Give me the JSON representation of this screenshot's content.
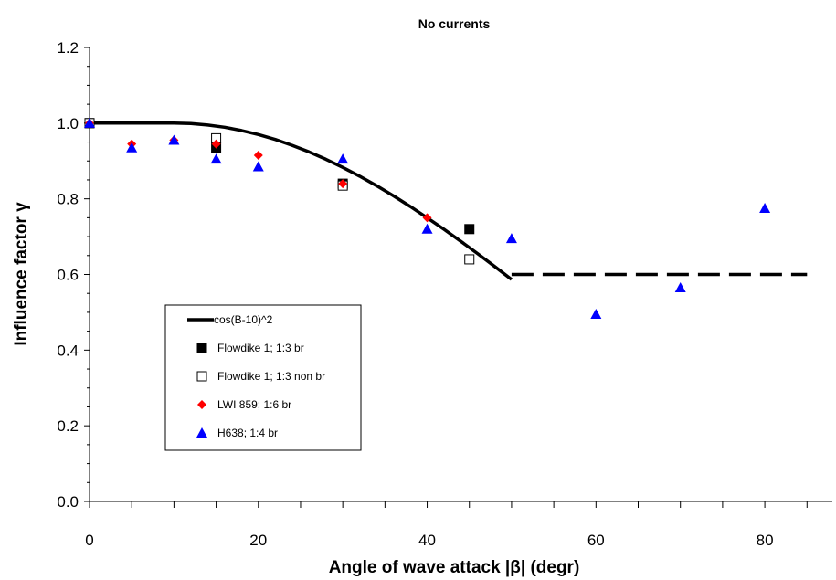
{
  "chart_data": {
    "type": "scatter",
    "title": "No currents",
    "xlabel": "Angle of wave attack |β| (degr)",
    "ylabel": "Influence factor γ",
    "xlim": [
      0,
      88
    ],
    "ylim": [
      0,
      1.2
    ],
    "x_ticks": [
      0,
      20,
      40,
      60,
      80
    ],
    "x_tick_labels": [
      "0",
      "20",
      "40",
      "60",
      "80"
    ],
    "y_ticks": [
      0,
      0.2,
      0.4,
      0.6,
      0.8,
      1.0,
      1.2
    ],
    "y_tick_labels": [
      "0.0",
      "0.2",
      "0.4",
      "0.6",
      "0.8",
      "1.0",
      "1.2"
    ],
    "grid": false,
    "legend_position": "bottom-left",
    "series": [
      {
        "name": "cos(B-10)^2",
        "kind": "line",
        "color": "#000000",
        "x": [
          0,
          10,
          12,
          14,
          16,
          18,
          20,
          22,
          24,
          26,
          28,
          30,
          32,
          34,
          36,
          38,
          40,
          42,
          44,
          46,
          48,
          50
        ],
        "y": [
          1.0,
          1.0,
          0.9988,
          0.9951,
          0.9891,
          0.9806,
          0.9698,
          0.9568,
          0.9415,
          0.924,
          0.9045,
          0.883,
          0.8597,
          0.8346,
          0.8078,
          0.7796,
          0.75,
          0.7192,
          0.6873,
          0.6545,
          0.6209,
          0.5868
        ]
      },
      {
        "name": "",
        "kind": "dashed-line",
        "color": "#000000",
        "x": [
          50,
          85
        ],
        "y": [
          0.6,
          0.6
        ]
      },
      {
        "name": "Flowdike 1; 1:3 br",
        "kind": "marker",
        "marker": "square-filled",
        "color": "#000000",
        "x": [
          0,
          15,
          30,
          45
        ],
        "y": [
          1.0,
          0.935,
          0.84,
          0.72
        ]
      },
      {
        "name": "Flowdike 1; 1:3 non br",
        "kind": "marker",
        "marker": "square-open",
        "color": "#000000",
        "x": [
          0,
          15,
          30,
          45
        ],
        "y": [
          1.0,
          0.96,
          0.835,
          0.64
        ]
      },
      {
        "name": "LWI 859; 1:6 br",
        "kind": "marker",
        "marker": "diamond",
        "color": "#ff0000",
        "x": [
          0,
          5,
          10,
          15,
          20,
          30,
          40
        ],
        "y": [
          1.0,
          0.945,
          0.955,
          0.945,
          0.915,
          0.84,
          0.75
        ]
      },
      {
        "name": "H638; 1:4 br",
        "kind": "marker",
        "marker": "triangle",
        "color": "#0000ff",
        "x": [
          0,
          5,
          10,
          15,
          20,
          30,
          40,
          50,
          60,
          70,
          80
        ],
        "y": [
          1.0,
          0.935,
          0.955,
          0.905,
          0.885,
          0.905,
          0.72,
          0.695,
          0.495,
          0.565,
          0.775
        ]
      }
    ]
  }
}
